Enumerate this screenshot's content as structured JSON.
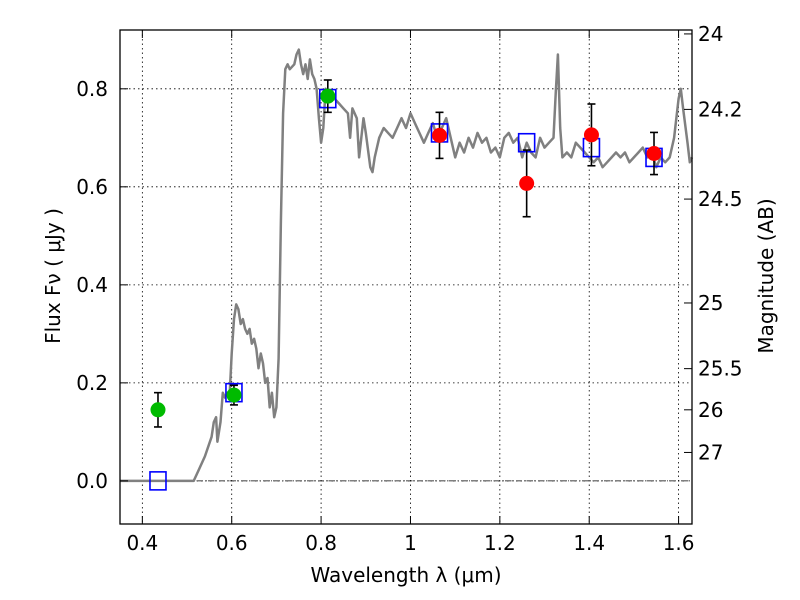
{
  "chart_data": {
    "type": "scatter",
    "xlabel": "Wavelength  λ (μm)",
    "ylabel": "Flux  Fν  ( μJy )",
    "ylabel_right": "Magnitude (AB)",
    "xlim": [
      0.35,
      1.63
    ],
    "ylim": [
      -0.088,
      0.92
    ],
    "grid": true,
    "x_ticks": [
      0.4,
      0.6,
      0.8,
      1.0,
      1.2,
      1.4,
      1.6
    ],
    "x_tick_labels": [
      "0.4",
      "0.6",
      "0.8",
      "1",
      "1.2",
      "1.4",
      "1.6"
    ],
    "y_ticks": [
      0.0,
      0.2,
      0.4,
      0.6,
      0.8
    ],
    "y_tick_labels": [
      "0.0",
      "0.2",
      "0.4",
      "0.6",
      "0.8"
    ],
    "right_ticks": [
      {
        "label": "24",
        "flux": 0.912
      },
      {
        "label": "24.2",
        "flux": 0.758
      },
      {
        "label": "24.5",
        "flux": 0.575
      },
      {
        "label": "25",
        "flux": 0.363
      },
      {
        "label": "25.5",
        "flux": 0.229
      },
      {
        "label": "26",
        "flux": 0.145
      },
      {
        "label": "27",
        "flux": 0.058
      }
    ],
    "series": [
      {
        "kind": "line",
        "color": "#808080",
        "points": [
          [
            0.35,
            0.0
          ],
          [
            0.515,
            0.0
          ],
          [
            0.525,
            0.02
          ],
          [
            0.54,
            0.05
          ],
          [
            0.555,
            0.09
          ],
          [
            0.56,
            0.12
          ],
          [
            0.565,
            0.13
          ],
          [
            0.568,
            0.08
          ],
          [
            0.575,
            0.12
          ],
          [
            0.58,
            0.18
          ],
          [
            0.585,
            0.17
          ],
          [
            0.59,
            0.18
          ],
          [
            0.595,
            0.17
          ],
          [
            0.6,
            0.26
          ],
          [
            0.605,
            0.33
          ],
          [
            0.61,
            0.36
          ],
          [
            0.615,
            0.35
          ],
          [
            0.62,
            0.32
          ],
          [
            0.625,
            0.33
          ],
          [
            0.63,
            0.31
          ],
          [
            0.635,
            0.3
          ],
          [
            0.64,
            0.31
          ],
          [
            0.645,
            0.28
          ],
          [
            0.65,
            0.29
          ],
          [
            0.655,
            0.27
          ],
          [
            0.66,
            0.23
          ],
          [
            0.665,
            0.26
          ],
          [
            0.67,
            0.24
          ],
          [
            0.675,
            0.2
          ],
          [
            0.68,
            0.21
          ],
          [
            0.685,
            0.15
          ],
          [
            0.69,
            0.18
          ],
          [
            0.695,
            0.13
          ],
          [
            0.7,
            0.15
          ],
          [
            0.705,
            0.25
          ],
          [
            0.71,
            0.53
          ],
          [
            0.715,
            0.75
          ],
          [
            0.72,
            0.84
          ],
          [
            0.725,
            0.85
          ],
          [
            0.73,
            0.84
          ],
          [
            0.74,
            0.85
          ],
          [
            0.745,
            0.87
          ],
          [
            0.75,
            0.88
          ],
          [
            0.755,
            0.85
          ],
          [
            0.76,
            0.83
          ],
          [
            0.765,
            0.85
          ],
          [
            0.77,
            0.82
          ],
          [
            0.775,
            0.86
          ],
          [
            0.78,
            0.83
          ],
          [
            0.785,
            0.82
          ],
          [
            0.79,
            0.8
          ],
          [
            0.795,
            0.74
          ],
          [
            0.8,
            0.69
          ],
          [
            0.805,
            0.72
          ],
          [
            0.81,
            0.8
          ],
          [
            0.82,
            0.78
          ],
          [
            0.83,
            0.78
          ],
          [
            0.84,
            0.77
          ],
          [
            0.85,
            0.76
          ],
          [
            0.86,
            0.75
          ],
          [
            0.865,
            0.7
          ],
          [
            0.87,
            0.76
          ],
          [
            0.88,
            0.74
          ],
          [
            0.885,
            0.66
          ],
          [
            0.89,
            0.7
          ],
          [
            0.895,
            0.74
          ],
          [
            0.9,
            0.71
          ],
          [
            0.91,
            0.64
          ],
          [
            0.915,
            0.63
          ],
          [
            0.92,
            0.66
          ],
          [
            0.93,
            0.7
          ],
          [
            0.94,
            0.72
          ],
          [
            0.95,
            0.71
          ],
          [
            0.96,
            0.7
          ],
          [
            0.97,
            0.72
          ],
          [
            0.98,
            0.74
          ],
          [
            0.99,
            0.72
          ],
          [
            1.0,
            0.75
          ],
          [
            1.01,
            0.73
          ],
          [
            1.02,
            0.71
          ],
          [
            1.03,
            0.69
          ],
          [
            1.04,
            0.71
          ],
          [
            1.05,
            0.73
          ],
          [
            1.06,
            0.7
          ],
          [
            1.07,
            0.72
          ],
          [
            1.08,
            0.74
          ],
          [
            1.09,
            0.7
          ],
          [
            1.1,
            0.66
          ],
          [
            1.11,
            0.69
          ],
          [
            1.12,
            0.67
          ],
          [
            1.13,
            0.7
          ],
          [
            1.14,
            0.68
          ],
          [
            1.15,
            0.71
          ],
          [
            1.16,
            0.69
          ],
          [
            1.17,
            0.7
          ],
          [
            1.18,
            0.67
          ],
          [
            1.19,
            0.68
          ],
          [
            1.2,
            0.66
          ],
          [
            1.21,
            0.7
          ],
          [
            1.22,
            0.71
          ],
          [
            1.23,
            0.69
          ],
          [
            1.24,
            0.7
          ],
          [
            1.25,
            0.66
          ],
          [
            1.26,
            0.69
          ],
          [
            1.27,
            0.67
          ],
          [
            1.28,
            0.66
          ],
          [
            1.29,
            0.7
          ],
          [
            1.3,
            0.68
          ],
          [
            1.31,
            0.69
          ],
          [
            1.32,
            0.7
          ],
          [
            1.325,
            0.79
          ],
          [
            1.33,
            0.87
          ],
          [
            1.335,
            0.72
          ],
          [
            1.34,
            0.66
          ],
          [
            1.35,
            0.67
          ],
          [
            1.36,
            0.66
          ],
          [
            1.37,
            0.69
          ],
          [
            1.38,
            0.68
          ],
          [
            1.39,
            0.67
          ],
          [
            1.4,
            0.66
          ],
          [
            1.41,
            0.65
          ],
          [
            1.42,
            0.66
          ],
          [
            1.43,
            0.64
          ],
          [
            1.44,
            0.65
          ],
          [
            1.45,
            0.66
          ],
          [
            1.46,
            0.67
          ],
          [
            1.47,
            0.66
          ],
          [
            1.48,
            0.67
          ],
          [
            1.49,
            0.65
          ],
          [
            1.5,
            0.66
          ],
          [
            1.51,
            0.67
          ],
          [
            1.52,
            0.68
          ],
          [
            1.53,
            0.66
          ],
          [
            1.54,
            0.67
          ],
          [
            1.55,
            0.64
          ],
          [
            1.56,
            0.66
          ],
          [
            1.57,
            0.65
          ],
          [
            1.58,
            0.66
          ],
          [
            1.59,
            0.7
          ],
          [
            1.6,
            0.78
          ],
          [
            1.605,
            0.8
          ],
          [
            1.61,
            0.76
          ],
          [
            1.62,
            0.69
          ],
          [
            1.625,
            0.65
          ],
          [
            1.63,
            0.66
          ]
        ]
      },
      {
        "kind": "markers",
        "marker": "open-square",
        "color": "#0000ff",
        "points": [
          [
            0.435,
            0.0
          ],
          [
            0.605,
            0.18
          ],
          [
            0.815,
            0.78
          ],
          [
            1.065,
            0.71
          ],
          [
            1.26,
            0.69
          ],
          [
            1.405,
            0.68
          ],
          [
            1.545,
            0.66
          ]
        ]
      },
      {
        "kind": "markers",
        "marker": "filled-circle",
        "color": "#00bb00",
        "points": [
          [
            0.435,
            0.145
          ],
          [
            0.605,
            0.175
          ],
          [
            0.815,
            0.785
          ]
        ],
        "errors": [
          0.035,
          0.02,
          0.033
        ]
      },
      {
        "kind": "markers",
        "marker": "filled-circle",
        "color": "#ff0000",
        "points": [
          [
            1.065,
            0.705
          ],
          [
            1.26,
            0.607
          ],
          [
            1.405,
            0.706
          ],
          [
            1.545,
            0.668
          ]
        ],
        "errors": [
          0.047,
          0.068,
          0.063,
          0.043
        ]
      }
    ],
    "zero_line": true
  }
}
